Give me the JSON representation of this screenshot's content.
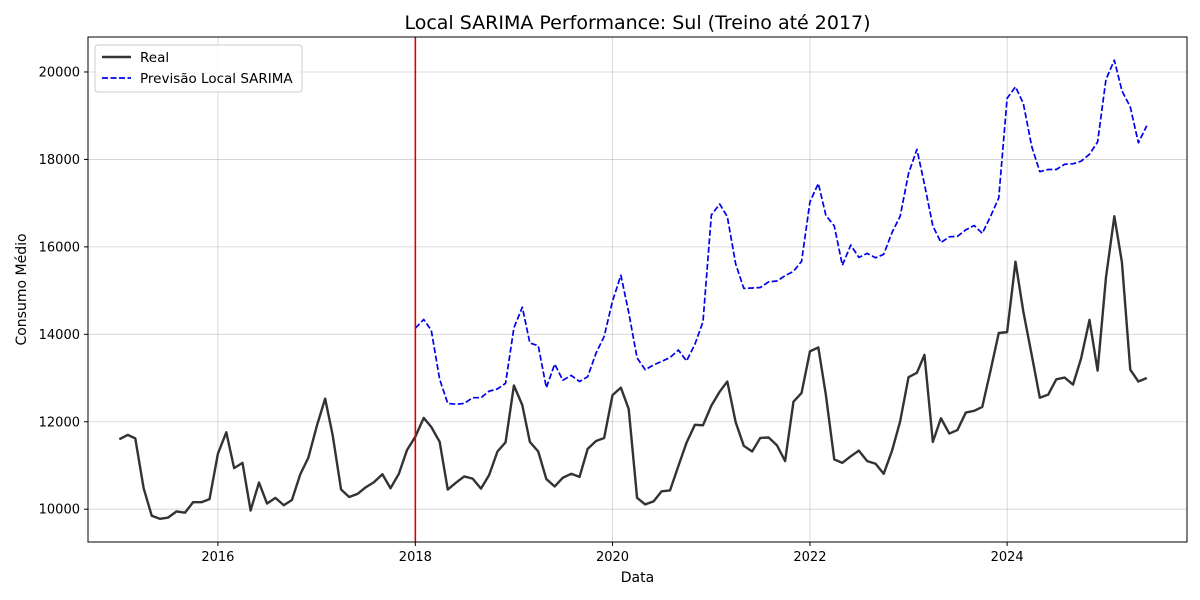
{
  "chart_data": {
    "type": "line",
    "title": "Local SARIMA Performance: Sul (Treino até 2017)",
    "xlabel": "Data",
    "ylabel": "Consumo Médio",
    "xlim": [
      "2014-09-07",
      "2025-10-28"
    ],
    "ylim": [
      9250,
      20800
    ],
    "x_ticks": [
      "2016",
      "2018",
      "2020",
      "2022",
      "2024"
    ],
    "y_ticks": [
      10000,
      12000,
      14000,
      16000,
      18000,
      20000
    ],
    "grid": true,
    "legend_position": "top-left",
    "split_line": {
      "date": "2018-01-01",
      "color": "#dd0000"
    },
    "series": [
      {
        "name": "Real",
        "color": "#333333",
        "style": "solid",
        "start": "2015-01",
        "values": [
          11600,
          11700,
          11620,
          10480,
          9850,
          9780,
          9810,
          9950,
          9920,
          10160,
          10160,
          10230,
          11270,
          11760,
          10940,
          11060,
          9970,
          10610,
          10130,
          10260,
          10090,
          10210,
          10800,
          11180,
          11900,
          12530,
          11690,
          10450,
          10280,
          10350,
          10500,
          10620,
          10800,
          10480,
          10810,
          11350,
          11660,
          12090,
          11880,
          11540,
          10450,
          10610,
          10750,
          10700,
          10470,
          10780,
          11320,
          11530,
          12830,
          12380,
          11540,
          11320,
          10690,
          10520,
          10720,
          10810,
          10740,
          11380,
          11560,
          11630,
          12610,
          12780,
          12290,
          10260,
          10110,
          10180,
          10410,
          10430,
          10990,
          11520,
          11930,
          11920,
          12370,
          12690,
          12920,
          11990,
          11450,
          11320,
          11630,
          11640,
          11460,
          11100,
          12460,
          12660,
          13610,
          13700,
          12610,
          11140,
          11060,
          11210,
          11340,
          11100,
          11040,
          10810,
          11340,
          12010,
          13020,
          13120,
          13530,
          11540,
          12080,
          11730,
          11810,
          12210,
          12250,
          12340,
          13180,
          14030,
          14050,
          15660,
          14520,
          13530,
          12550,
          12620,
          12970,
          13010,
          12850,
          13450,
          14330,
          13170,
          15300,
          16700,
          15650,
          13190,
          12920,
          13000
        ]
      },
      {
        "name": "Previsão Local SARIMA",
        "color": "#0000ee",
        "style": "dashed",
        "start": "2018-01",
        "values": [
          14140,
          14340,
          14090,
          12970,
          12420,
          12400,
          12420,
          12550,
          12550,
          12700,
          12750,
          12880,
          14150,
          14620,
          13800,
          13740,
          12780,
          13320,
          12950,
          13060,
          12920,
          13030,
          13570,
          13950,
          14760,
          15350,
          14500,
          13460,
          13190,
          13300,
          13380,
          13470,
          13640,
          13390,
          13770,
          14290,
          16730,
          16980,
          16690,
          15610,
          15050,
          15060,
          15070,
          15200,
          15220,
          15340,
          15440,
          15670,
          17030,
          17450,
          16720,
          16480,
          15580,
          16040,
          15760,
          15850,
          15750,
          15830,
          16330,
          16700,
          17680,
          18230,
          17430,
          16480,
          16100,
          16230,
          16240,
          16390,
          16490,
          16310,
          16700,
          17120,
          19400,
          19660,
          19280,
          18300,
          17720,
          17770,
          17770,
          17890,
          17900,
          17960,
          18120,
          18400,
          19830,
          20270,
          19570,
          19200,
          18380,
          18770
        ]
      }
    ]
  }
}
